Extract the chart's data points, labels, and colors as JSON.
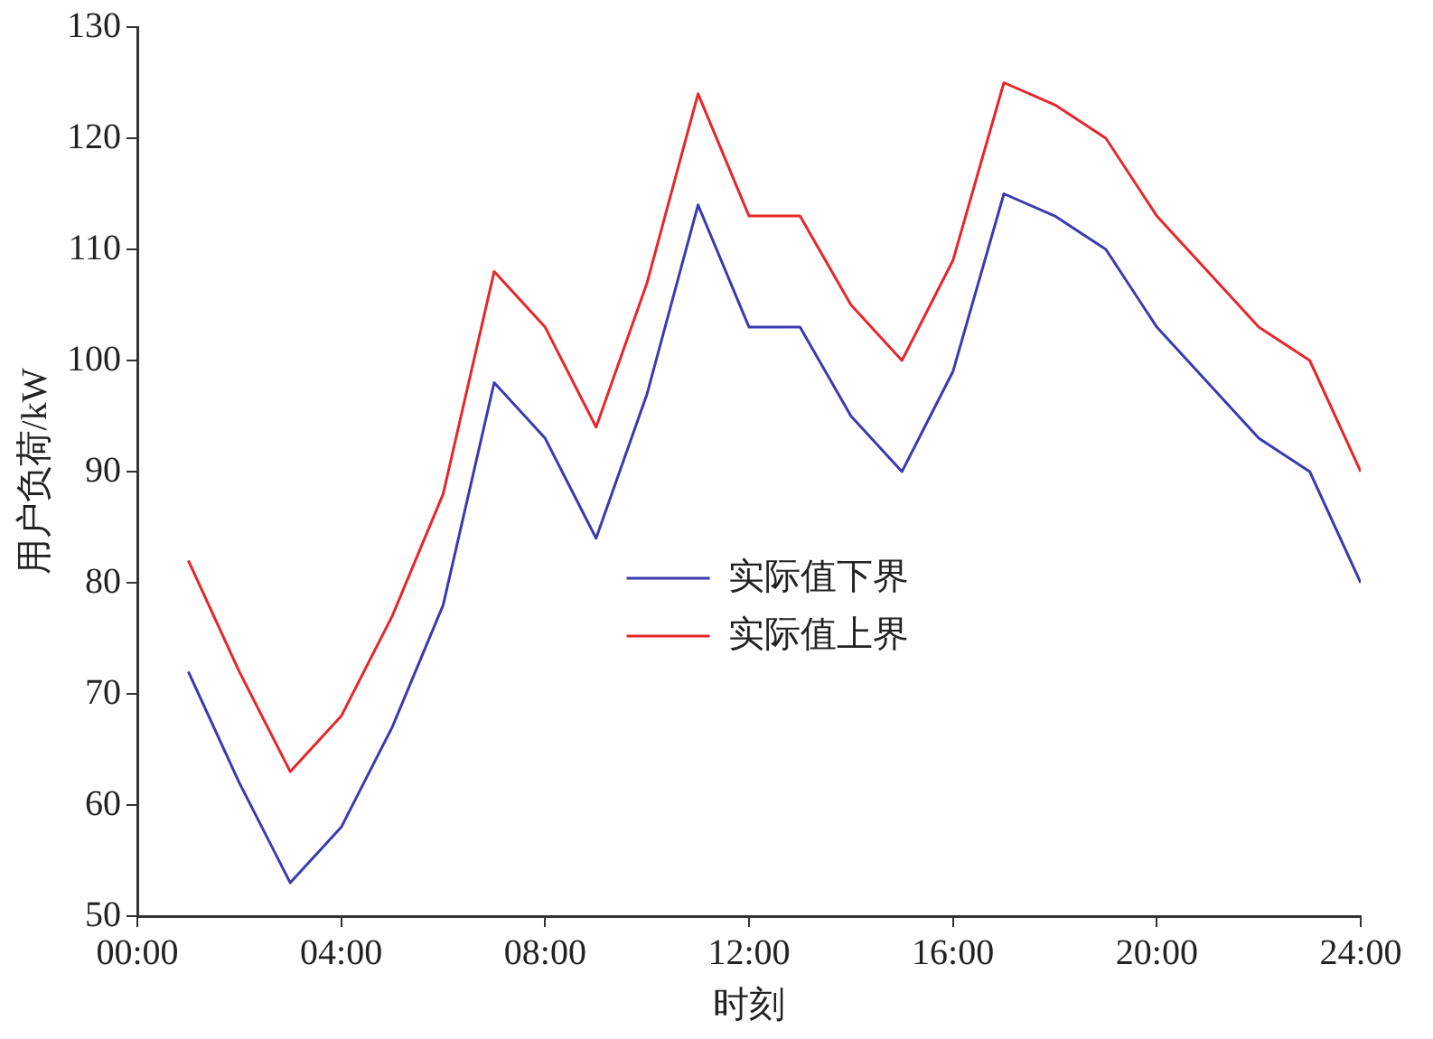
{
  "chart_data": {
    "type": "line",
    "xlabel": "时刻",
    "ylabel": "用户负荷/kW",
    "x": [
      1,
      2,
      3,
      4,
      5,
      6,
      7,
      8,
      9,
      10,
      11,
      12,
      13,
      14,
      15,
      16,
      17,
      18,
      19,
      20,
      21,
      22,
      23,
      24
    ],
    "series": [
      {
        "name": "实际值下界",
        "color": "#3a3ab0",
        "values": [
          72,
          62,
          53,
          58,
          67,
          78,
          98,
          93,
          84,
          97,
          114,
          103,
          103,
          95,
          90,
          99,
          115,
          113,
          110,
          103,
          98,
          93,
          90,
          80
        ]
      },
      {
        "name": "实际值上界",
        "color": "#e8262a",
        "values": [
          82,
          72,
          63,
          68,
          77,
          88,
          108,
          103,
          94,
          107,
          124,
          113,
          113,
          105,
          100,
          109,
          125,
          123,
          120,
          113,
          108,
          103,
          100,
          90
        ]
      }
    ],
    "xlim": [
      0,
      24
    ],
    "xticks": [
      {
        "value": 0,
        "label": "00:00"
      },
      {
        "value": 4,
        "label": "04:00"
      },
      {
        "value": 8,
        "label": "08:00"
      },
      {
        "value": 12,
        "label": "12:00"
      },
      {
        "value": 16,
        "label": "16:00"
      },
      {
        "value": 20,
        "label": "20:00"
      },
      {
        "value": 24,
        "label": "24:00"
      }
    ],
    "ylim": [
      50,
      130
    ],
    "yticks": [
      50,
      60,
      70,
      80,
      90,
      100,
      110,
      120,
      130
    ],
    "grid": false,
    "legend": "bottom",
    "marker": "none",
    "line_style": "solid"
  }
}
